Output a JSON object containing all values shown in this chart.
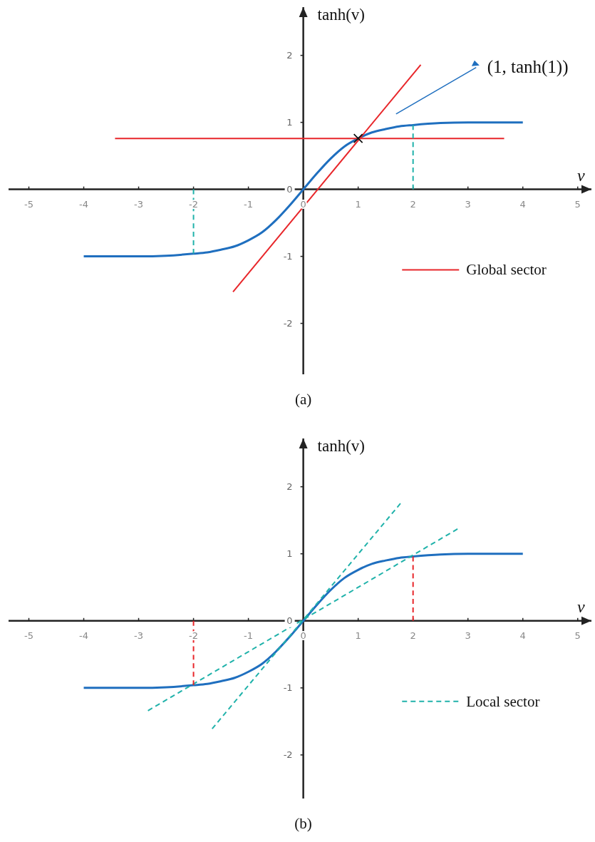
{
  "chart_data": [
    {
      "type": "line",
      "title": "(a)",
      "xlabel": "v",
      "ylabel": "tanh(v)",
      "xlim": [
        -5.37,
        5.25
      ],
      "ylim": [
        -2.76,
        2.72
      ],
      "xticks": [
        -5,
        -4,
        -3,
        -2,
        -1,
        0,
        1,
        2,
        3,
        4,
        5
      ],
      "yticks": [
        -2,
        -1,
        0,
        1,
        2
      ],
      "legend": "right",
      "annotations": [
        "(1, tanh(1))"
      ],
      "series": [
        {
          "color": "#1f6fbf",
          "x": [
            -4,
            -3.5,
            -3,
            -2.5,
            -2,
            -1.75,
            -1.5,
            -1.25,
            -1,
            -0.75,
            -0.5,
            -0.25,
            0,
            0.25,
            0.5,
            0.75,
            1,
            1.25,
            1.5,
            1.75,
            2,
            2.5,
            3,
            3.5,
            4
          ],
          "values": [
            -1,
            -1,
            -1,
            -0.99,
            -0.96,
            -0.94,
            -0.9,
            -0.85,
            -0.76,
            -0.64,
            -0.46,
            -0.24,
            0,
            0.24,
            0.46,
            0.64,
            0.76,
            0.85,
            0.9,
            0.94,
            0.96,
            0.99,
            1,
            1,
            1
          ]
        },
        {
          "name": "Global sector",
          "color": "#e8262a",
          "x": [
            -3.43,
            3.66
          ],
          "values": [
            0.76,
            0.76
          ]
        },
        {
          "color": "#e8262a",
          "x": [
            -1.28,
            2.14
          ],
          "values": [
            -1.53,
            1.86
          ]
        },
        {
          "color": "#20b2aa",
          "line_style": "dashed",
          "x": [
            2,
            2
          ],
          "values": [
            0,
            0.96
          ]
        },
        {
          "color": "#20b2aa",
          "line_style": "dashed",
          "x": [
            -2,
            -2
          ],
          "values": [
            0,
            -0.96
          ]
        },
        {
          "type": "scatter",
          "marker": "cross",
          "color": "#111111",
          "x": [
            1
          ],
          "values": [
            0.76
          ]
        }
      ]
    },
    {
      "type": "line",
      "title": "(b)",
      "xlabel": "v",
      "ylabel": "tanh(v)",
      "xlim": [
        -5.37,
        5.25
      ],
      "ylim": [
        -2.65,
        2.72
      ],
      "xticks": [
        -5,
        -4,
        -3,
        -2,
        -1,
        0,
        1,
        2,
        3,
        4,
        5
      ],
      "yticks": [
        -2,
        -1,
        0,
        1,
        2
      ],
      "legend": "right",
      "series": [
        {
          "color": "#1f6fbf",
          "x": [
            -4,
            -3.5,
            -3,
            -2.5,
            -2,
            -1.75,
            -1.5,
            -1.25,
            -1,
            -0.75,
            -0.5,
            -0.25,
            0,
            0.25,
            0.5,
            0.75,
            1,
            1.25,
            1.5,
            1.75,
            2,
            2.5,
            3,
            3.5,
            4
          ],
          "values": [
            -1,
            -1,
            -1,
            -0.99,
            -0.96,
            -0.94,
            -0.9,
            -0.85,
            -0.76,
            -0.64,
            -0.46,
            -0.24,
            0,
            0.24,
            0.46,
            0.64,
            0.76,
            0.85,
            0.9,
            0.94,
            0.96,
            0.99,
            1,
            1,
            1
          ]
        },
        {
          "name": "Local sector",
          "color": "#20b2aa",
          "line_style": "dashed",
          "x": [
            -2.83,
            2.81
          ],
          "values": [
            -1.34,
            1.37
          ]
        },
        {
          "color": "#20b2aa",
          "line_style": "dashed",
          "x": [
            -1.66,
            1.77
          ],
          "values": [
            -1.61,
            1.75
          ]
        },
        {
          "color": "#e8262a",
          "line_style": "dashed",
          "x": [
            2,
            2
          ],
          "values": [
            0,
            0.96
          ]
        },
        {
          "color": "#e8262a",
          "line_style": "dashed",
          "x": [
            -2,
            -2
          ],
          "values": [
            0,
            -0.96
          ]
        }
      ]
    }
  ]
}
